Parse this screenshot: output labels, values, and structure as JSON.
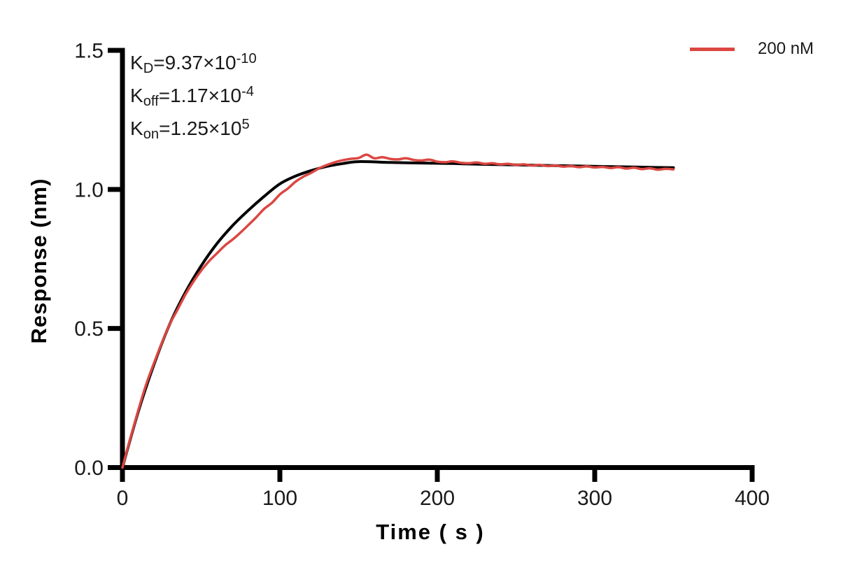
{
  "annotations": {
    "kd": {
      "base": "K",
      "sub": "D",
      "eq": "=9.37×10",
      "sup": "-10"
    },
    "koff": {
      "base": "K",
      "sub": "off",
      "eq": "=1.17×10",
      "sup": "-4"
    },
    "kon": {
      "base": "K",
      "sub": "on",
      "eq": "=1.25×10",
      "sup": "5"
    }
  },
  "legend": {
    "label": "200 nM",
    "color": "#db4742"
  },
  "chart_data": {
    "type": "line",
    "title": "",
    "xlabel": "Time ( s )",
    "ylabel": "Response (nm)",
    "xlim": [
      0,
      400
    ],
    "ylim": [
      0,
      1.5
    ],
    "x_ticks": [
      0,
      100,
      200,
      300,
      400
    ],
    "x_tick_labels": [
      "0",
      "100",
      "200",
      "300",
      "400"
    ],
    "y_ticks": [
      0,
      0.5,
      1,
      1.5
    ],
    "y_tick_labels": [
      "0.0",
      "0.5",
      "1.0",
      "1.5"
    ],
    "grid": false,
    "legend_position": "top-right",
    "axis_color": "#000000",
    "kinetics": {
      "KD": "9.37×10^-10",
      "Koff": "1.17×10^-4",
      "Kon": "1.25×10^5"
    },
    "series": [
      {
        "name": "fit",
        "color": "#000000",
        "width": 4,
        "points": [
          [
            0,
            0
          ],
          [
            10,
            0.2
          ],
          [
            20,
            0.37
          ],
          [
            30,
            0.515
          ],
          [
            40,
            0.63
          ],
          [
            50,
            0.725
          ],
          [
            60,
            0.805
          ],
          [
            70,
            0.87
          ],
          [
            80,
            0.925
          ],
          [
            90,
            0.975
          ],
          [
            100,
            1.02
          ],
          [
            110,
            1.048
          ],
          [
            120,
            1.068
          ],
          [
            130,
            1.083
          ],
          [
            140,
            1.093
          ],
          [
            150,
            1.1
          ],
          [
            170,
            1.097
          ],
          [
            190,
            1.095
          ],
          [
            210,
            1.093
          ],
          [
            230,
            1.09
          ],
          [
            250,
            1.088
          ],
          [
            270,
            1.086
          ],
          [
            290,
            1.084
          ],
          [
            310,
            1.082
          ],
          [
            330,
            1.08
          ],
          [
            350,
            1.078
          ]
        ]
      },
      {
        "name": "200 nM",
        "color": "#db4742",
        "width": 3.5,
        "points": [
          [
            0,
            0
          ],
          [
            5,
            0.105
          ],
          [
            10,
            0.205
          ],
          [
            15,
            0.298
          ],
          [
            20,
            0.375
          ],
          [
            25,
            0.448
          ],
          [
            30,
            0.515
          ],
          [
            35,
            0.568
          ],
          [
            40,
            0.622
          ],
          [
            45,
            0.668
          ],
          [
            50,
            0.708
          ],
          [
            55,
            0.742
          ],
          [
            60,
            0.77
          ],
          [
            65,
            0.798
          ],
          [
            70,
            0.82
          ],
          [
            75,
            0.845
          ],
          [
            80,
            0.872
          ],
          [
            85,
            0.9
          ],
          [
            90,
            0.93
          ],
          [
            95,
            0.952
          ],
          [
            100,
            0.982
          ],
          [
            105,
            1.003
          ],
          [
            110,
            1.028
          ],
          [
            115,
            1.046
          ],
          [
            120,
            1.06
          ],
          [
            125,
            1.076
          ],
          [
            130,
            1.088
          ],
          [
            135,
            1.098
          ],
          [
            140,
            1.105
          ],
          [
            145,
            1.11
          ],
          [
            150,
            1.113
          ],
          [
            155,
            1.125
          ],
          [
            160,
            1.112
          ],
          [
            165,
            1.116
          ],
          [
            170,
            1.11
          ],
          [
            175,
            1.108
          ],
          [
            180,
            1.112
          ],
          [
            185,
            1.106
          ],
          [
            190,
            1.104
          ],
          [
            195,
            1.107
          ],
          [
            200,
            1.1
          ],
          [
            205,
            1.098
          ],
          [
            210,
            1.101
          ],
          [
            215,
            1.096
          ],
          [
            220,
            1.094
          ],
          [
            225,
            1.097
          ],
          [
            230,
            1.092
          ],
          [
            235,
            1.094
          ],
          [
            240,
            1.09
          ],
          [
            245,
            1.092
          ],
          [
            250,
            1.088
          ],
          [
            255,
            1.09
          ],
          [
            260,
            1.086
          ],
          [
            265,
            1.088
          ],
          [
            270,
            1.084
          ],
          [
            275,
            1.086
          ],
          [
            280,
            1.082
          ],
          [
            285,
            1.084
          ],
          [
            290,
            1.08
          ],
          [
            295,
            1.083
          ],
          [
            300,
            1.079
          ],
          [
            305,
            1.081
          ],
          [
            310,
            1.077
          ],
          [
            315,
            1.08
          ],
          [
            320,
            1.075
          ],
          [
            325,
            1.078
          ],
          [
            330,
            1.073
          ],
          [
            335,
            1.076
          ],
          [
            340,
            1.071
          ],
          [
            345,
            1.074
          ],
          [
            350,
            1.072
          ]
        ]
      }
    ]
  }
}
